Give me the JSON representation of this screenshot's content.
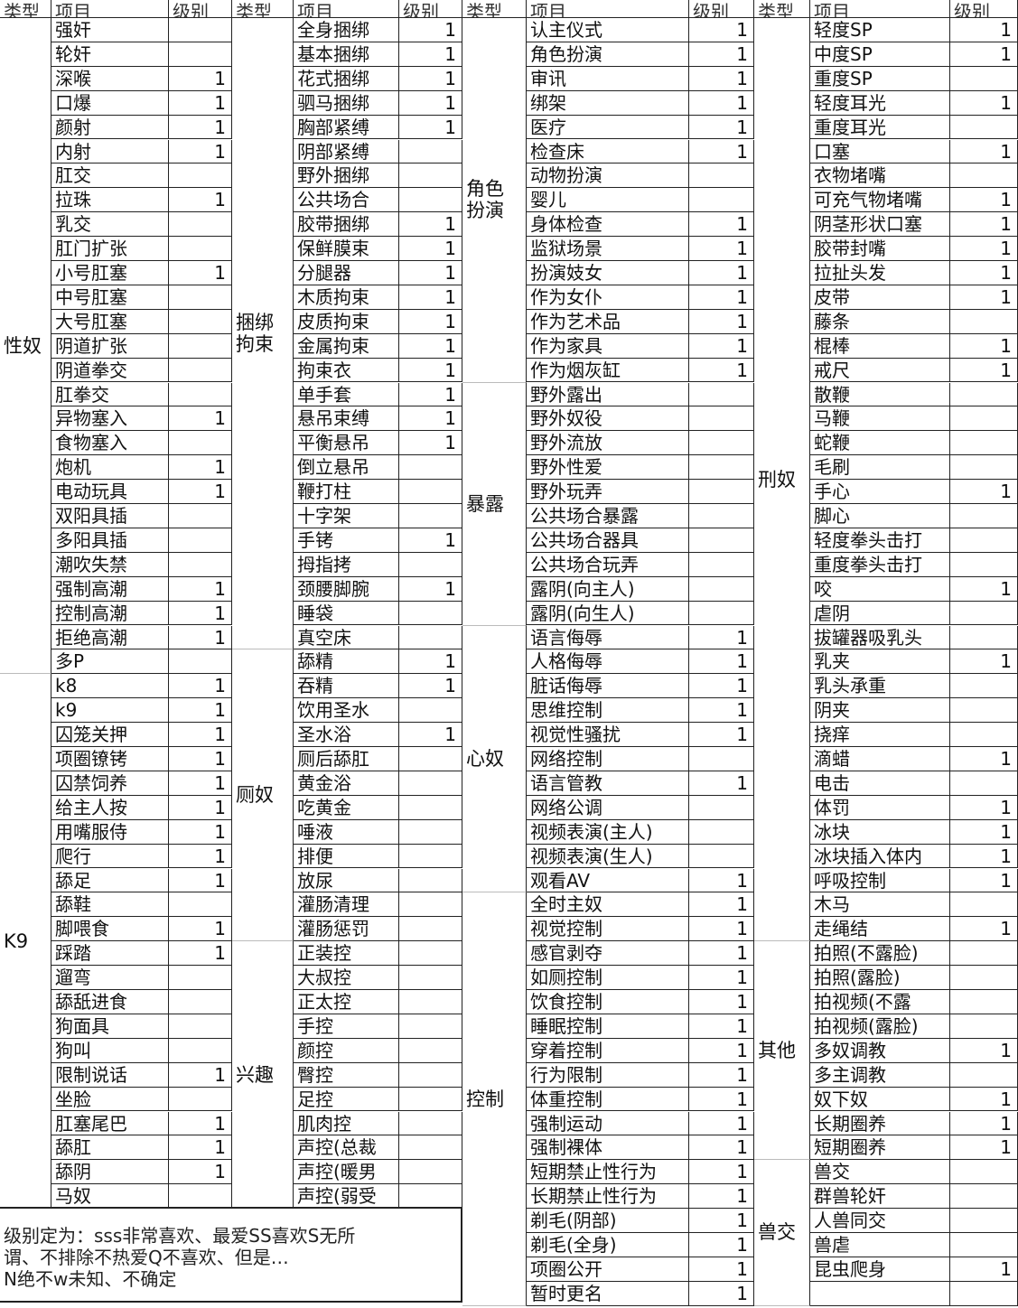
{
  "headers": {
    "type": "类型",
    "item": "项目",
    "level": "级别"
  },
  "note": [
    "级别定为：sss非常喜欢、最爱SS喜欢S无所",
    "谓、不排除不热爱Q不喜欢、但是…",
    "N绝不w未知、不确定"
  ],
  "groups": [
    {
      "types": [
        {
          "label": "性奴",
          "rows": 27
        },
        {
          "label": "K9",
          "rows": 22
        }
      ],
      "items": [
        [
          "强奸",
          ""
        ],
        [
          "轮奸",
          ""
        ],
        [
          "深喉",
          "1"
        ],
        [
          "口爆",
          "1"
        ],
        [
          "颜射",
          "1"
        ],
        [
          "内射",
          "1"
        ],
        [
          "肛交",
          ""
        ],
        [
          "拉珠",
          "1"
        ],
        [
          "乳交",
          ""
        ],
        [
          "肛门扩张",
          ""
        ],
        [
          "小号肛塞",
          "1"
        ],
        [
          "中号肛塞",
          ""
        ],
        [
          "大号肛塞",
          ""
        ],
        [
          "阴道扩张",
          ""
        ],
        [
          "阴道拳交",
          ""
        ],
        [
          "肛拳交",
          ""
        ],
        [
          "异物塞入",
          "1"
        ],
        [
          "食物塞入",
          ""
        ],
        [
          "炮机",
          "1"
        ],
        [
          "电动玩具",
          "1"
        ],
        [
          "双阳具插",
          ""
        ],
        [
          "多阳具插",
          ""
        ],
        [
          "潮吹失禁",
          ""
        ],
        [
          "强制高潮",
          "1"
        ],
        [
          "控制高潮",
          "1"
        ],
        [
          "拒绝高潮",
          "1"
        ],
        [
          "多P",
          ""
        ],
        [
          "k8",
          "1"
        ],
        [
          "k9",
          "1"
        ],
        [
          "囚笼关押",
          "1"
        ],
        [
          "项圈镣铐",
          "1"
        ],
        [
          "囚禁饲养",
          "1"
        ],
        [
          "给主人按",
          "1"
        ],
        [
          "用嘴服侍",
          "1"
        ],
        [
          "爬行",
          "1"
        ],
        [
          "舔足",
          "1"
        ],
        [
          "舔鞋",
          ""
        ],
        [
          "脚喂食",
          "1"
        ],
        [
          "踩踏",
          "1"
        ],
        [
          "遛弯",
          ""
        ],
        [
          "舔舐进食",
          ""
        ],
        [
          "狗面具",
          ""
        ],
        [
          "狗叫",
          ""
        ],
        [
          "限制说话",
          "1"
        ],
        [
          "坐脸",
          ""
        ],
        [
          "肛塞尾巴",
          "1"
        ],
        [
          "舔肛",
          "1"
        ],
        [
          "舔阴",
          "1"
        ],
        [
          "马奴",
          ""
        ]
      ]
    },
    {
      "types": [
        {
          "label": "捆绑\n拘束",
          "rows": 26
        },
        {
          "label": "厕奴",
          "rows": 12
        },
        {
          "label": "兴趣",
          "rows": 11
        }
      ],
      "items": [
        [
          "全身捆绑",
          "1"
        ],
        [
          "基本捆绑",
          "1"
        ],
        [
          "花式捆绑",
          "1"
        ],
        [
          "驷马捆绑",
          "1"
        ],
        [
          "胸部紧缚",
          "1"
        ],
        [
          "阴部紧缚",
          ""
        ],
        [
          "野外捆绑",
          ""
        ],
        [
          "公共场合",
          ""
        ],
        [
          "胶带捆绑",
          "1"
        ],
        [
          "保鲜膜束",
          "1"
        ],
        [
          "分腿器",
          "1"
        ],
        [
          "木质拘束",
          "1"
        ],
        [
          "皮质拘束",
          "1"
        ],
        [
          "金属拘束",
          "1"
        ],
        [
          "拘束衣",
          "1"
        ],
        [
          "单手套",
          "1"
        ],
        [
          "悬吊束缚",
          "1"
        ],
        [
          "平衡悬吊",
          "1"
        ],
        [
          "倒立悬吊",
          ""
        ],
        [
          "鞭打柱",
          ""
        ],
        [
          "十字架",
          ""
        ],
        [
          "手铐",
          "1"
        ],
        [
          "拇指拷",
          ""
        ],
        [
          "颈腰脚腕",
          "1"
        ],
        [
          "睡袋",
          ""
        ],
        [
          "真空床",
          ""
        ],
        [
          "舔精",
          "1"
        ],
        [
          "吞精",
          "1"
        ],
        [
          "饮用圣水",
          ""
        ],
        [
          "圣水浴",
          "1"
        ],
        [
          "厕后舔肛",
          ""
        ],
        [
          "黄金浴",
          ""
        ],
        [
          "吃黄金",
          ""
        ],
        [
          "唾液",
          ""
        ],
        [
          "排便",
          ""
        ],
        [
          "放尿",
          ""
        ],
        [
          "灌肠清理",
          ""
        ],
        [
          "灌肠惩罚",
          ""
        ],
        [
          "正装控",
          ""
        ],
        [
          "大叔控",
          ""
        ],
        [
          "正太控",
          ""
        ],
        [
          "手控",
          ""
        ],
        [
          "颜控",
          ""
        ],
        [
          "臀控",
          ""
        ],
        [
          "足控",
          ""
        ],
        [
          "肌肉控",
          ""
        ],
        [
          "声控(总裁",
          ""
        ],
        [
          "声控(暖男",
          ""
        ],
        [
          "声控(弱受",
          ""
        ]
      ]
    },
    {
      "types": [
        {
          "label": "角色\n扮演",
          "rows": 15
        },
        {
          "label": "暴露",
          "rows": 10
        },
        {
          "label": "心奴",
          "rows": 11
        },
        {
          "label": "控制",
          "rows": 17
        }
      ],
      "items": [
        [
          "认主仪式",
          "1"
        ],
        [
          "角色扮演",
          "1"
        ],
        [
          "审讯",
          "1"
        ],
        [
          "绑架",
          "1"
        ],
        [
          "医疗",
          "1"
        ],
        [
          "检查床",
          "1"
        ],
        [
          "动物扮演",
          ""
        ],
        [
          "婴儿",
          ""
        ],
        [
          "身体检查",
          "1"
        ],
        [
          "监狱场景",
          "1"
        ],
        [
          "扮演妓女",
          "1"
        ],
        [
          "作为女仆",
          "1"
        ],
        [
          "作为艺术品",
          "1"
        ],
        [
          "作为家具",
          "1"
        ],
        [
          "作为烟灰缸",
          "1"
        ],
        [
          "野外露出",
          ""
        ],
        [
          "野外奴役",
          ""
        ],
        [
          "野外流放",
          ""
        ],
        [
          "野外性爱",
          ""
        ],
        [
          "野外玩弄",
          ""
        ],
        [
          "公共场合暴露",
          ""
        ],
        [
          "公共场合器具",
          ""
        ],
        [
          "公共场合玩弄",
          ""
        ],
        [
          "露阴(向主人)",
          ""
        ],
        [
          "露阴(向生人)",
          ""
        ],
        [
          "语言侮辱",
          "1"
        ],
        [
          "人格侮辱",
          "1"
        ],
        [
          "脏话侮辱",
          "1"
        ],
        [
          "思维控制",
          "1"
        ],
        [
          "视觉性骚扰",
          "1"
        ],
        [
          "网络控制",
          ""
        ],
        [
          "语言管教",
          "1"
        ],
        [
          "网络公调",
          ""
        ],
        [
          "视频表演(主人)",
          ""
        ],
        [
          "视频表演(生人)",
          ""
        ],
        [
          "观看AV",
          "1"
        ],
        [
          "全时主奴",
          "1"
        ],
        [
          "视觉控制",
          "1"
        ],
        [
          "感官剥夺",
          "1"
        ],
        [
          "如厕控制",
          "1"
        ],
        [
          "饮食控制",
          "1"
        ],
        [
          "睡眠控制",
          "1"
        ],
        [
          "穿着控制",
          "1"
        ],
        [
          "行为限制",
          "1"
        ],
        [
          "体重控制",
          "1"
        ],
        [
          "强制运动",
          "1"
        ],
        [
          "强制裸体",
          "1"
        ],
        [
          "短期禁止性行为",
          "1"
        ],
        [
          "长期禁止性行为",
          "1"
        ],
        [
          "剃毛(阴部)",
          "1"
        ],
        [
          "剃毛(全身)",
          "1"
        ],
        [
          "项圈公开",
          "1"
        ],
        [
          "暂时更名",
          "1"
        ]
      ]
    },
    {
      "types": [
        {
          "label": "刑奴",
          "rows": 38
        },
        {
          "label": "其他",
          "rows": 9
        },
        {
          "label": "兽交",
          "rows": 6
        }
      ],
      "items": [
        [
          "轻度SP",
          "1"
        ],
        [
          "中度SP",
          "1"
        ],
        [
          "重度SP",
          ""
        ],
        [
          "轻度耳光",
          "1"
        ],
        [
          "重度耳光",
          ""
        ],
        [
          "口塞",
          "1"
        ],
        [
          "衣物堵嘴",
          ""
        ],
        [
          "可充气物堵嘴",
          "1"
        ],
        [
          "阴茎形状口塞",
          "1"
        ],
        [
          "胶带封嘴",
          "1"
        ],
        [
          "拉扯头发",
          "1"
        ],
        [
          "皮带",
          "1"
        ],
        [
          "藤条",
          ""
        ],
        [
          "棍棒",
          "1"
        ],
        [
          "戒尺",
          "1"
        ],
        [
          "散鞭",
          ""
        ],
        [
          "马鞭",
          ""
        ],
        [
          "蛇鞭",
          ""
        ],
        [
          "毛刷",
          ""
        ],
        [
          "手心",
          "1"
        ],
        [
          "脚心",
          ""
        ],
        [
          "轻度拳头击打",
          ""
        ],
        [
          "重度拳头击打",
          ""
        ],
        [
          "咬",
          "1"
        ],
        [
          "虐阴",
          ""
        ],
        [
          "拔罐器吸乳头",
          ""
        ],
        [
          "乳夹",
          "1"
        ],
        [
          "乳头承重",
          ""
        ],
        [
          "阴夹",
          ""
        ],
        [
          "挠痒",
          ""
        ],
        [
          "滴蜡",
          "1"
        ],
        [
          "电击",
          ""
        ],
        [
          "体罚",
          "1"
        ],
        [
          "冰块",
          "1"
        ],
        [
          "冰块插入体内",
          "1"
        ],
        [
          "呼吸控制",
          "1"
        ],
        [
          "木马",
          ""
        ],
        [
          "走绳结",
          "1"
        ],
        [
          "拍照(不露脸)",
          ""
        ],
        [
          "拍照(露脸)",
          ""
        ],
        [
          "拍视频(不露",
          ""
        ],
        [
          "拍视频(露脸)",
          ""
        ],
        [
          "多奴调教",
          "1"
        ],
        [
          "多主调教",
          ""
        ],
        [
          "奴下奴",
          "1"
        ],
        [
          "长期圈养",
          "1"
        ],
        [
          "短期圈养",
          "1"
        ],
        [
          "兽交",
          ""
        ],
        [
          "群兽轮奸",
          ""
        ],
        [
          "人兽同交",
          ""
        ],
        [
          "兽虐",
          ""
        ],
        [
          "昆虫爬身",
          "1"
        ],
        [
          "",
          ""
        ]
      ]
    }
  ]
}
